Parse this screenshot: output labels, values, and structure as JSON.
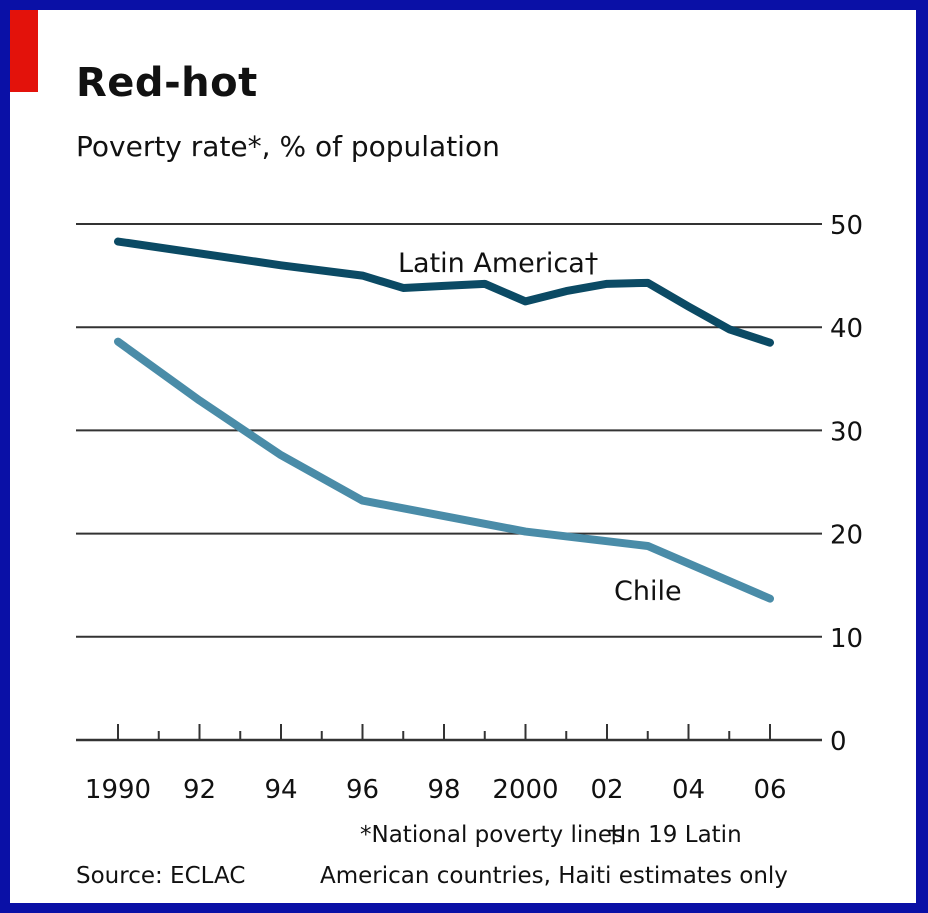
{
  "title": "Red-hot",
  "subtitle": "Poverty rate*, % of population",
  "footnotes": {
    "national": "*National poverty lines",
    "latin_part1": "†In 19 Latin",
    "latin_part2": "American countries, Haiti estimates only"
  },
  "source": "Source: ECLAC",
  "colors": {
    "background": "#0a10a6",
    "accent": "#e3120b",
    "latin_america": "#0b4a64",
    "chile": "#4a8ca8",
    "gridline": "#333333"
  },
  "chart_data": {
    "type": "line",
    "title": "Red-hot",
    "subtitle": "Poverty rate*, % of population",
    "xlim": [
      1990,
      2006
    ],
    "ylim": [
      0,
      50
    ],
    "y_ticks": [
      0,
      10,
      20,
      30,
      40,
      50
    ],
    "y_axis_side": "right",
    "grid": true,
    "x_ticks": [
      1990,
      1992,
      1994,
      1996,
      1998,
      2000,
      2002,
      2004,
      2006
    ],
    "x_tick_labels": [
      "1990",
      "92",
      "94",
      "96",
      "98",
      "2000",
      "02",
      "04",
      "06"
    ],
    "series": [
      {
        "name": "Latin America†",
        "color": "#0b4a64",
        "x": [
          1990,
          1994,
          1996,
          1997,
          1998,
          1999,
          2000,
          2001,
          2002,
          2003,
          2004,
          2005,
          2006
        ],
        "y": [
          48.3,
          46.0,
          45.0,
          43.8,
          44.0,
          44.2,
          42.5,
          43.5,
          44.2,
          44.3,
          42.0,
          39.8,
          38.5
        ]
      },
      {
        "name": "Chile",
        "color": "#4a8ca8",
        "x": [
          1990,
          1992,
          1994,
          1996,
          1998,
          2000,
          2003,
          2006
        ],
        "y": [
          38.6,
          32.9,
          27.6,
          23.2,
          21.7,
          20.2,
          18.8,
          13.7
        ]
      }
    ]
  }
}
